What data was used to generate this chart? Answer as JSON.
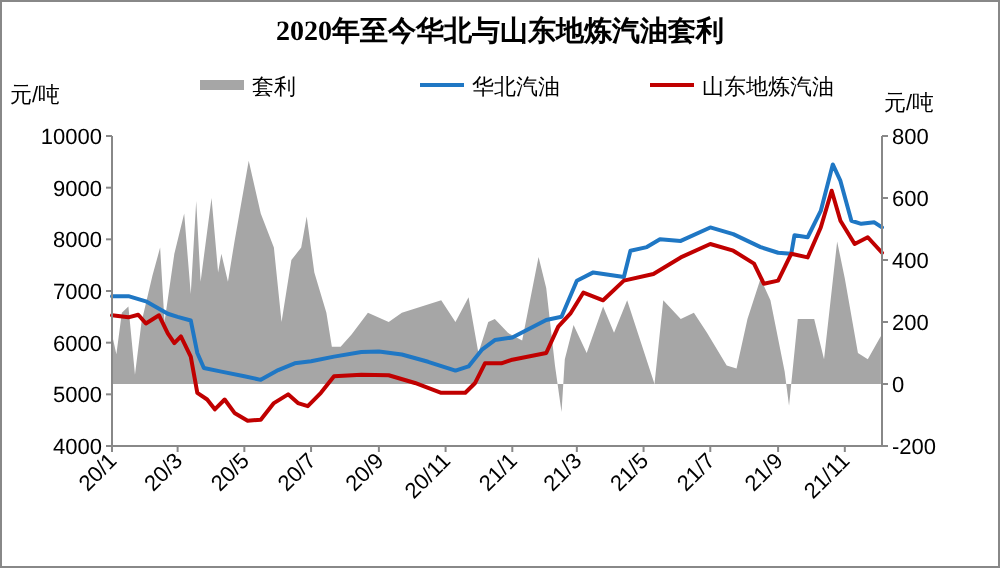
{
  "chart_data": {
    "type": "line",
    "title": "2020年至今华北与山东地炼汽油套利",
    "ylabel": "元/吨",
    "y2label": "元/吨",
    "xlim": [
      "2020-01-01",
      "2021-12-05"
    ],
    "xticks": [
      {
        "value": "2020-01-01",
        "label": "20/1"
      },
      {
        "value": "2020-03-01",
        "label": "20/3"
      },
      {
        "value": "2020-05-01",
        "label": "20/5"
      },
      {
        "value": "2020-07-01",
        "label": "20/7"
      },
      {
        "value": "2020-09-01",
        "label": "20/9"
      },
      {
        "value": "2020-11-01",
        "label": "20/11"
      },
      {
        "value": "2021-01-01",
        "label": "21/1"
      },
      {
        "value": "2021-03-01",
        "label": "21/3"
      },
      {
        "value": "2021-05-01",
        "label": "21/5"
      },
      {
        "value": "2021-07-01",
        "label": "21/7"
      },
      {
        "value": "2021-09-01",
        "label": "21/9"
      },
      {
        "value": "2021-11-01",
        "label": "21/11"
      }
    ],
    "ylim": [
      4000,
      10000
    ],
    "yticks": [
      4000,
      5000,
      6000,
      7000,
      8000,
      9000,
      10000
    ],
    "y2lim": [
      -200,
      800
    ],
    "y2ticks": [
      -200,
      0,
      200,
      400,
      600,
      800
    ],
    "legend": "top",
    "grid": false,
    "series": [
      {
        "name": "套利",
        "type": "area",
        "axis": "y2",
        "color": "#a6a6a6",
        "x": [
          "2020-01-01",
          "2020-01-05",
          "2020-01-10",
          "2020-01-16",
          "2020-01-22",
          "2020-01-28",
          "2020-02-07",
          "2020-02-14",
          "2020-02-18",
          "2020-02-27",
          "2020-03-07",
          "2020-03-13",
          "2020-03-18",
          "2020-03-22",
          "2020-04-01",
          "2020-04-07",
          "2020-04-10",
          "2020-04-16",
          "2020-04-22",
          "2020-05-05",
          "2020-05-16",
          "2020-05-28",
          "2020-06-04",
          "2020-06-13",
          "2020-06-22",
          "2020-06-27",
          "2020-07-04",
          "2020-07-15",
          "2020-07-20",
          "2020-07-28",
          "2020-08-07",
          "2020-08-22",
          "2020-09-10",
          "2020-09-22",
          "2020-10-10",
          "2020-10-28",
          "2020-11-10",
          "2020-11-22",
          "2020-12-01",
          "2020-12-10",
          "2020-12-16",
          "2020-12-28",
          "2021-01-10",
          "2021-01-25",
          "2021-02-01",
          "2021-02-09",
          "2021-02-15",
          "2021-02-18",
          "2021-02-26",
          "2021-03-10",
          "2021-03-25",
          "2021-04-04",
          "2021-04-16",
          "2021-04-28",
          "2021-05-11",
          "2021-05-19",
          "2021-06-04",
          "2021-06-16",
          "2021-06-28",
          "2021-07-16",
          "2021-07-25",
          "2021-08-04",
          "2021-08-16",
          "2021-08-25",
          "2021-09-07",
          "2021-09-11",
          "2021-09-19",
          "2021-10-04",
          "2021-10-13",
          "2021-10-25",
          "2021-11-01",
          "2021-11-13",
          "2021-11-22",
          "2021-12-04"
        ],
        "values": [
          160,
          96,
          230,
          250,
          30,
          200,
          350,
          440,
          200,
          420,
          550,
          290,
          590,
          330,
          600,
          360,
          420,
          330,
          460,
          720,
          550,
          440,
          200,
          400,
          440,
          540,
          360,
          230,
          120,
          120,
          160,
          230,
          200,
          230,
          250,
          270,
          200,
          280,
          100,
          200,
          210,
          165,
          140,
          410,
          310,
          60,
          -90,
          80,
          190,
          100,
          250,
          165,
          270,
          140,
          0,
          270,
          210,
          230,
          165,
          60,
          50,
          210,
          340,
          270,
          40,
          -70,
          210,
          210,
          80,
          460,
          340,
          100,
          80,
          155
        ]
      },
      {
        "name": "华北汽油",
        "color": "#1f77c4",
        "x": [
          "2020-01-01",
          "2020-01-16",
          "2020-02-01",
          "2020-02-21",
          "2020-03-01",
          "2020-03-13",
          "2020-03-19",
          "2020-03-25",
          "2020-04-10",
          "2020-05-01",
          "2020-05-16",
          "2020-06-01",
          "2020-06-16",
          "2020-07-01",
          "2020-07-22",
          "2020-08-16",
          "2020-09-01",
          "2020-09-22",
          "2020-10-16",
          "2020-11-10",
          "2020-11-22",
          "2020-12-04",
          "2020-12-16",
          "2021-01-01",
          "2021-02-01",
          "2021-02-15",
          "2021-03-01",
          "2021-03-16",
          "2021-04-13",
          "2021-04-19",
          "2021-05-04",
          "2021-05-16",
          "2021-06-04",
          "2021-07-01",
          "2021-07-22",
          "2021-08-16",
          "2021-09-01",
          "2021-09-13",
          "2021-09-16",
          "2021-09-28",
          "2021-10-10",
          "2021-10-21",
          "2021-10-28",
          "2021-11-07",
          "2021-11-16",
          "2021-11-28",
          "2021-12-05"
        ],
        "values": [
          6900,
          6900,
          6800,
          6560,
          6500,
          6430,
          5800,
          5510,
          5440,
          5350,
          5280,
          5470,
          5600,
          5640,
          5730,
          5820,
          5830,
          5770,
          5630,
          5460,
          5540,
          5860,
          6050,
          6100,
          6440,
          6500,
          7200,
          7360,
          7270,
          7780,
          7850,
          8000,
          7970,
          8230,
          8100,
          7850,
          7740,
          7720,
          8080,
          8040,
          8550,
          9450,
          9130,
          8360,
          8300,
          8330,
          8230
        ]
      },
      {
        "name": "山东地炼汽油",
        "color": "#c00000",
        "x": [
          "2020-01-01",
          "2020-01-16",
          "2020-01-25",
          "2020-02-01",
          "2020-02-13",
          "2020-02-21",
          "2020-02-27",
          "2020-03-04",
          "2020-03-13",
          "2020-03-19",
          "2020-03-28",
          "2020-04-04",
          "2020-04-13",
          "2020-04-22",
          "2020-05-04",
          "2020-05-16",
          "2020-05-28",
          "2020-06-10",
          "2020-06-19",
          "2020-06-28",
          "2020-07-10",
          "2020-07-22",
          "2020-08-16",
          "2020-09-10",
          "2020-10-04",
          "2020-10-28",
          "2020-11-19",
          "2020-11-28",
          "2020-12-07",
          "2020-12-22",
          "2021-01-01",
          "2021-02-01",
          "2021-02-12",
          "2021-02-23",
          "2021-03-07",
          "2021-03-25",
          "2021-04-13",
          "2021-05-10",
          "2021-06-04",
          "2021-07-01",
          "2021-07-22",
          "2021-08-10",
          "2021-08-19",
          "2021-09-01",
          "2021-09-13",
          "2021-09-28",
          "2021-10-10",
          "2021-10-20",
          "2021-10-28",
          "2021-11-10",
          "2021-11-22",
          "2021-12-05"
        ],
        "values": [
          6530,
          6490,
          6540,
          6370,
          6530,
          6180,
          5990,
          6120,
          5730,
          5030,
          4900,
          4710,
          4900,
          4640,
          4490,
          4510,
          4830,
          5000,
          4830,
          4770,
          5030,
          5350,
          5380,
          5370,
          5220,
          5030,
          5030,
          5220,
          5600,
          5600,
          5670,
          5800,
          6310,
          6560,
          6970,
          6820,
          7200,
          7330,
          7650,
          7910,
          7780,
          7530,
          7140,
          7200,
          7720,
          7650,
          8230,
          8940,
          8360,
          7910,
          8040,
          7740
        ]
      }
    ]
  }
}
